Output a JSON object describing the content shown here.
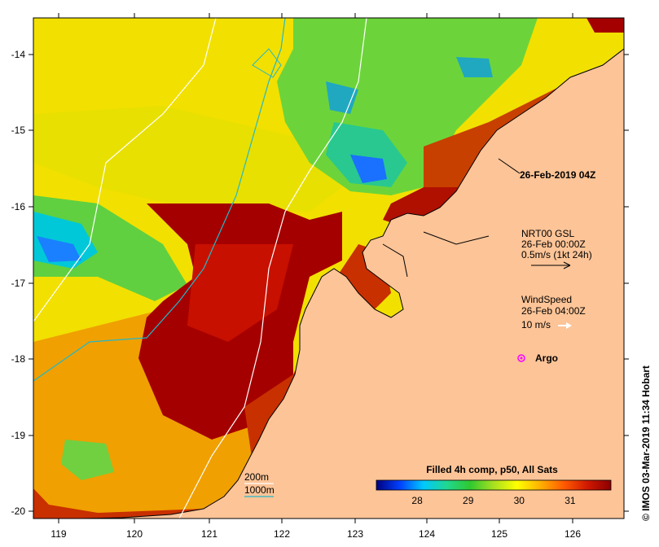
{
  "map": {
    "x_ticks": [
      "119",
      "120",
      "121",
      "122",
      "123",
      "124",
      "125",
      "126"
    ],
    "y_ticks": [
      "-14",
      "-15",
      "-16",
      "-17",
      "-18",
      "-19",
      "-20"
    ],
    "timestamp_label": "26-Feb-2019 04Z",
    "credit": "© IMOS 03-Mar-2019 11:34 Hobart"
  },
  "legend": {
    "currents": {
      "title": "NRT00 GSL",
      "time": "26-Feb 00:00Z",
      "scale": "0.5m/s (1kt 24h)"
    },
    "wind": {
      "title": "WindSpeed",
      "time": "26-Feb 04:00Z",
      "scale": "10 m/s"
    },
    "argo": "Argo",
    "bathymetry": {
      "contour_200": "200m",
      "contour_1000": "1000m"
    }
  },
  "colorbar": {
    "title": "Filled 4h comp, p50, All Sats",
    "ticks": [
      "28",
      "29",
      "30",
      "31"
    ],
    "min": 27.2,
    "max": 31.8,
    "colors": [
      "#00007f",
      "#0040ff",
      "#00c8ff",
      "#20d890",
      "#30c830",
      "#a8e020",
      "#ffff00",
      "#ffb000",
      "#ff5a00",
      "#d01800",
      "#8a0000"
    ]
  },
  "colors": {
    "land": "#fdc497",
    "coast": "#000000",
    "contour_200": "#ffffff",
    "contour_1000": "#22b8c8",
    "argo": "#ff00ff"
  }
}
